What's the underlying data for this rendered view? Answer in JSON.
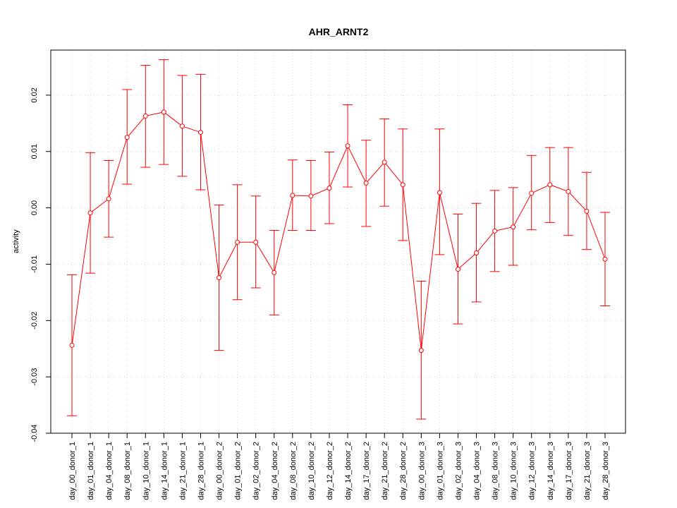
{
  "chart_data": {
    "type": "line",
    "title": "AHR_ARNT2",
    "xlabel": "",
    "ylabel": "activity",
    "ylim": [
      -0.04,
      0.028
    ],
    "yticks": [
      -0.04,
      -0.03,
      -0.02,
      -0.01,
      0.0,
      0.01,
      0.02
    ],
    "ytick_labels": [
      "-0.04",
      "-0.03",
      "-0.02",
      "-0.01",
      "0.00",
      "0.01",
      "0.02"
    ],
    "grid": true,
    "color": "#ff0000",
    "categories": [
      "day_00_donor_1",
      "day_01_donor_1",
      "day_04_donor_1",
      "day_08_donor_1",
      "day_10_donor_1",
      "day_14_donor_1",
      "day_21_donor_1",
      "day_28_donor_1",
      "day_00_donor_2",
      "day_01_donor_2",
      "day_02_donor_2",
      "day_04_donor_2",
      "day_08_donor_2",
      "day_10_donor_2",
      "day_12_donor_2",
      "day_14_donor_2",
      "day_17_donor_2",
      "day_21_donor_2",
      "day_28_donor_2",
      "day_00_donor_3",
      "day_01_donor_3",
      "day_02_donor_3",
      "day_04_donor_3",
      "day_08_donor_3",
      "day_10_donor_3",
      "day_12_donor_3",
      "day_14_donor_3",
      "day_17_donor_3",
      "day_21_donor_3",
      "day_28_donor_3"
    ],
    "values": [
      -0.0244,
      -0.0009,
      0.0016,
      0.0125,
      0.0163,
      0.017,
      0.0145,
      0.0134,
      -0.0124,
      -0.0061,
      -0.0061,
      -0.0115,
      0.0022,
      0.0021,
      0.0035,
      0.011,
      0.0044,
      0.0081,
      0.0041,
      -0.0253,
      0.0027,
      -0.0109,
      -0.008,
      -0.0041,
      -0.0034,
      0.0026,
      0.0041,
      0.0029,
      -0.0006,
      -0.0091
    ],
    "error_upper": [
      -0.0119,
      0.0098,
      0.0084,
      0.021,
      0.0253,
      0.0263,
      0.0235,
      0.0237,
      0.0005,
      0.0041,
      0.0021,
      -0.004,
      0.0085,
      0.0084,
      0.0099,
      0.0183,
      0.012,
      0.0158,
      0.014,
      -0.013,
      0.014,
      -0.0011,
      0.0008,
      0.0031,
      0.0036,
      0.0093,
      0.0107,
      0.0107,
      0.0063,
      -0.0008
    ],
    "error_lower": [
      -0.0369,
      -0.0116,
      -0.0052,
      0.0042,
      0.0072,
      0.0077,
      0.0056,
      0.0032,
      -0.0253,
      -0.0163,
      -0.0142,
      -0.019,
      -0.004,
      -0.004,
      -0.0028,
      0.0037,
      -0.0033,
      0.0003,
      -0.0058,
      -0.0375,
      -0.0083,
      -0.0206,
      -0.0167,
      -0.0113,
      -0.0102,
      -0.0039,
      -0.0026,
      -0.0049,
      -0.0074,
      -0.0174
    ]
  }
}
